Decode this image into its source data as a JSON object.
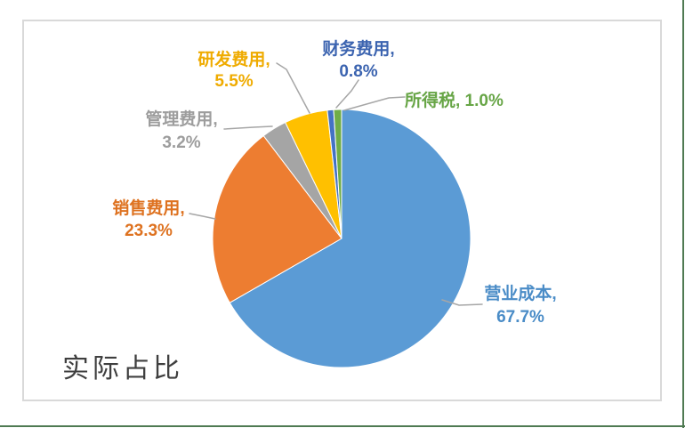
{
  "page": {
    "background": "#FFFFFF",
    "boundary_line_color": "#4F7A52"
  },
  "chart": {
    "border_color": "#D9D9D9",
    "background": "#FFFFFF",
    "title": "实际占比"
  },
  "chart_data": {
    "type": "pie",
    "title": "实际占比",
    "categories": [
      "营业成本",
      "销售费用",
      "管理费用",
      "研发费用",
      "财务费用",
      "所得税"
    ],
    "values": [
      67.7,
      23.3,
      3.2,
      5.5,
      0.8,
      1.0
    ],
    "unit": "%",
    "colors": [
      "#5B9BD5",
      "#ED7D31",
      "#A5A5A5",
      "#FFC000",
      "#4472C4",
      "#70AD47"
    ],
    "label_text_colors": [
      "#4A8CC7",
      "#DE7220",
      "#9D9D9D",
      "#EFAB00",
      "#3C64B0",
      "#67A546"
    ],
    "data_labels": [
      {
        "lines": [
          "营业成本,",
          "67.7%"
        ]
      },
      {
        "lines": [
          "销售费用,",
          "23.3%"
        ]
      },
      {
        "lines": [
          "管理费用,",
          "3.2%"
        ]
      },
      {
        "lines": [
          "研发费用,",
          "5.5%"
        ]
      },
      {
        "lines": [
          "财务费用,",
          "0.8%"
        ]
      },
      {
        "lines": [
          "所得税, 1.0%"
        ]
      }
    ],
    "legend": "none",
    "start_angle_deg": 0,
    "direction": "clockwise",
    "leader_lines": true,
    "leader_line_color": "#A6A6A6"
  }
}
